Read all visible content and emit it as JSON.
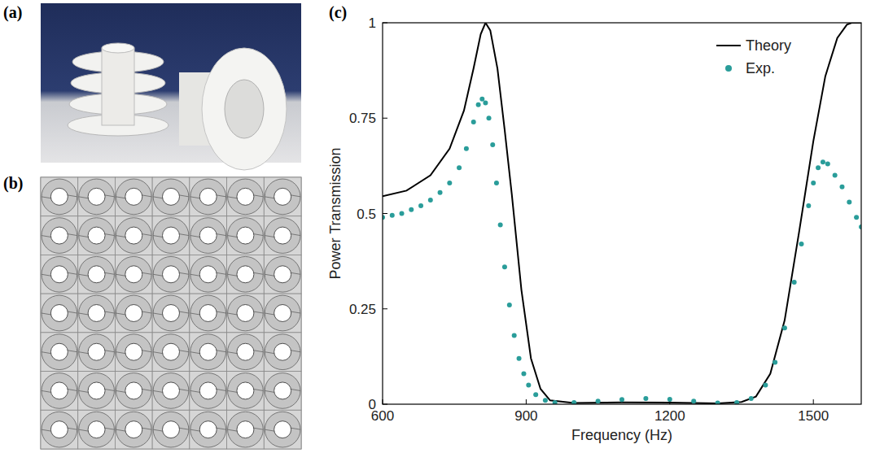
{
  "panel_labels": [
    "(a)",
    "(b)",
    "(c)"
  ],
  "lattice": {
    "rows": 7,
    "cols": 7
  },
  "chart_data": {
    "type": "line",
    "x_label": "Frequency (Hz)",
    "y_label": "Power Transmission",
    "xlim": [
      600,
      1600
    ],
    "xticks": [
      600,
      900,
      1200,
      1500
    ],
    "ylim": [
      0,
      1
    ],
    "yticks": [
      0,
      0.25,
      0.5,
      0.75,
      1
    ],
    "legend": "upper right",
    "grid": false,
    "series": [
      {
        "name": "Theory",
        "type": "line",
        "color": "#000000",
        "line_style": "solid",
        "x": [
          600,
          650,
          700,
          740,
          770,
          790,
          805,
          815,
          825,
          840,
          855,
          870,
          890,
          910,
          930,
          950,
          1000,
          1100,
          1200,
          1300,
          1350,
          1380,
          1410,
          1440,
          1470,
          1500,
          1525,
          1550,
          1570,
          1580,
          1600
        ],
        "values": [
          0.545,
          0.56,
          0.6,
          0.67,
          0.77,
          0.88,
          0.97,
          1.0,
          0.98,
          0.88,
          0.72,
          0.55,
          0.3,
          0.12,
          0.04,
          0.01,
          0.003,
          0.005,
          0.004,
          0.002,
          0.006,
          0.02,
          0.08,
          0.22,
          0.45,
          0.69,
          0.86,
          0.96,
          0.995,
          1.0,
          1.0
        ]
      },
      {
        "name": "Exp.",
        "type": "scatter",
        "color": "#2a9d9a",
        "marker": "circle",
        "x": [
          600,
          620,
          640,
          660,
          680,
          700,
          720,
          740,
          760,
          775,
          790,
          800,
          808,
          815,
          822,
          830,
          838,
          846,
          855,
          865,
          875,
          885,
          895,
          905,
          920,
          940,
          960,
          1000,
          1050,
          1100,
          1150,
          1200,
          1250,
          1300,
          1340,
          1370,
          1400,
          1420,
          1440,
          1460,
          1475,
          1490,
          1500,
          1510,
          1520,
          1530,
          1545,
          1560,
          1575,
          1590,
          1600
        ],
        "values": [
          0.49,
          0.495,
          0.5,
          0.51,
          0.52,
          0.535,
          0.555,
          0.58,
          0.62,
          0.67,
          0.74,
          0.785,
          0.8,
          0.79,
          0.75,
          0.68,
          0.58,
          0.47,
          0.36,
          0.26,
          0.18,
          0.12,
          0.08,
          0.05,
          0.025,
          0.01,
          0.004,
          0.004,
          0.008,
          0.012,
          0.015,
          0.013,
          0.008,
          0.003,
          0.004,
          0.015,
          0.05,
          0.11,
          0.2,
          0.32,
          0.42,
          0.52,
          0.58,
          0.62,
          0.635,
          0.63,
          0.6,
          0.57,
          0.53,
          0.49,
          0.465
        ]
      }
    ]
  }
}
